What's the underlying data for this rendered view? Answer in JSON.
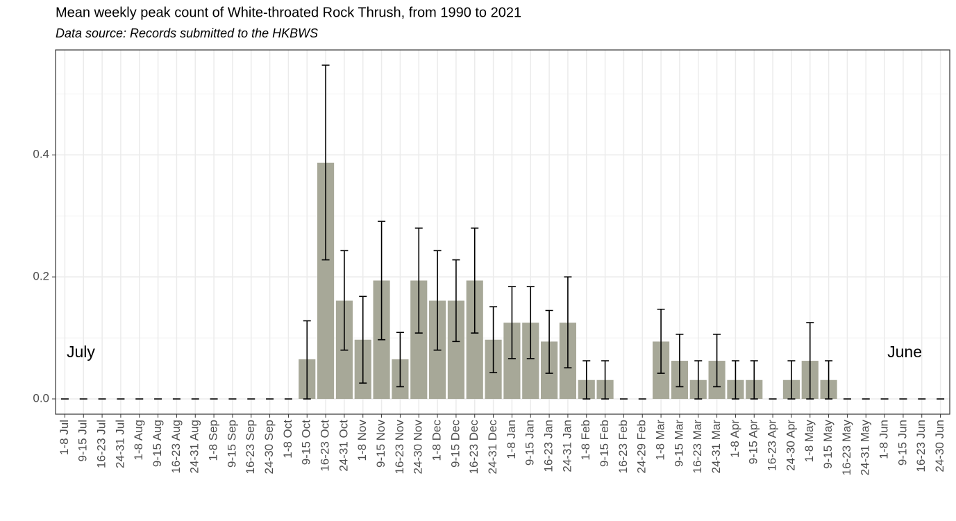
{
  "chart_data": {
    "type": "bar",
    "title": "Mean weekly peak count of White-throated Rock Thrush, from 1990 to 2021",
    "subtitle": "Data source: Records submitted to the HKBWS",
    "categories": [
      "1-8 Jul",
      "9-15 Jul",
      "16-23 Jul",
      "24-31 Jul",
      "1-8 Aug",
      "9-15 Aug",
      "16-23 Aug",
      "24-31 Aug",
      "1-8 Sep",
      "9-15 Sep",
      "16-23 Sep",
      "24-30 Sep",
      "1-8 Oct",
      "9-15 Oct",
      "16-23 Oct",
      "24-31 Oct",
      "1-8 Nov",
      "9-15 Nov",
      "16-23 Nov",
      "24-30 Nov",
      "1-8 Dec",
      "9-15 Dec",
      "16-23 Dec",
      "24-31 Dec",
      "1-8 Jan",
      "9-15 Jan",
      "16-23 Jan",
      "24-31 Jan",
      "1-8 Feb",
      "9-15 Feb",
      "16-23 Feb",
      "24-29 Feb",
      "1-8 Mar",
      "9-15 Mar",
      "16-23 Mar",
      "24-31 Mar",
      "1-8 Apr",
      "9-15 Apr",
      "16-23 Apr",
      "24-30 Apr",
      "1-8 May",
      "9-15 May",
      "16-23 May",
      "24-31 May",
      "1-8 Jun",
      "9-15 Jun",
      "16-23 Jun",
      "24-30 Jun"
    ],
    "values": [
      0,
      0,
      0,
      0,
      0,
      0,
      0,
      0,
      0,
      0,
      0,
      0,
      0,
      0.065,
      0.387,
      0.161,
      0.097,
      0.194,
      0.065,
      0.194,
      0.161,
      0.161,
      0.194,
      0.097,
      0.125,
      0.125,
      0.094,
      0.125,
      0.031,
      0.031,
      0,
      0,
      0.094,
      0.0625,
      0.031,
      0.0625,
      0.031,
      0.031,
      0,
      0.031,
      0.0625,
      0.031,
      0,
      0,
      0,
      0,
      0,
      0
    ],
    "lower": [
      0,
      0,
      0,
      0,
      0,
      0,
      0,
      0,
      0,
      0,
      0,
      0,
      0,
      0,
      0.228,
      0.08,
      0.026,
      0.097,
      0.02,
      0.108,
      0.08,
      0.094,
      0.108,
      0.043,
      0.066,
      0.066,
      0.042,
      0.051,
      0,
      0,
      0,
      0,
      0.042,
      0.02,
      0,
      0.02,
      0,
      0,
      0,
      0,
      0,
      0,
      0,
      0,
      0,
      0,
      0,
      0
    ],
    "upper": [
      0,
      0,
      0,
      0,
      0,
      0,
      0,
      0,
      0,
      0,
      0,
      0,
      0,
      0.128,
      0.547,
      0.243,
      0.168,
      0.291,
      0.109,
      0.28,
      0.243,
      0.228,
      0.28,
      0.151,
      0.184,
      0.184,
      0.145,
      0.2,
      0.0625,
      0.0625,
      0,
      0,
      0.147,
      0.106,
      0.0625,
      0.106,
      0.0625,
      0.0625,
      0,
      0.0625,
      0.125,
      0.0625,
      0,
      0,
      0,
      0,
      0,
      0
    ],
    "color": "#a7a898",
    "ylim": [
      -0.025,
      0.572
    ],
    "yticks": [
      {
        "value": 0,
        "label": "0.0"
      },
      0.2,
      0.4
    ],
    "grid": true,
    "annotations": [
      "July",
      "June"
    ]
  }
}
